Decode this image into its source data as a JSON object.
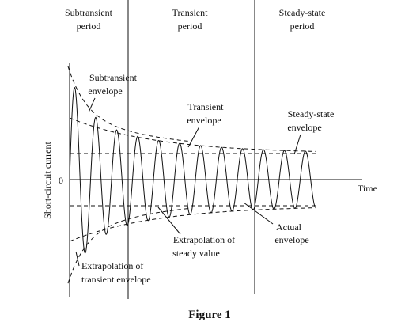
{
  "periods": [
    {
      "line1": "Subtransient",
      "line2": "period"
    },
    {
      "line1": "Transient",
      "line2": "period"
    },
    {
      "line1": "Steady-state",
      "line2": "period"
    }
  ],
  "labels": {
    "subtransient_envelope": [
      "Subtransient",
      "envelope"
    ],
    "transient_envelope": [
      "Transient",
      "envelope"
    ],
    "steady_envelope": [
      "Steady-state",
      "envelope"
    ],
    "actual_envelope": [
      "Actual",
      "envelope"
    ],
    "extrap_steady": [
      "Extrapolation of",
      "steady value"
    ],
    "extrap_transient": [
      "Extrapolation of",
      "transient envelope"
    ]
  },
  "axis": {
    "y_label": "Short-circuit current",
    "x_label": "Time",
    "origin": "0"
  },
  "caption": "Figure 1"
}
